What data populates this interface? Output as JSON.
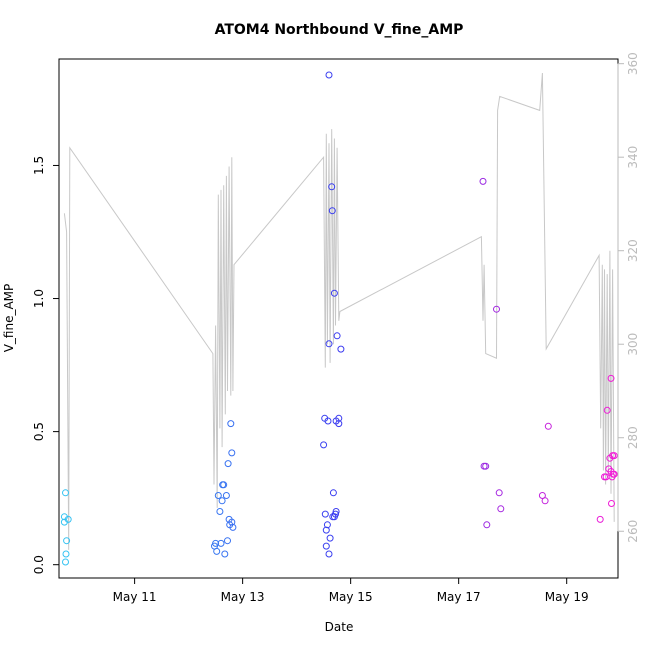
{
  "chart_data": {
    "type": "scatter",
    "title": "ATOM4 Northbound V_fine_AMP",
    "xlabel": "Date",
    "ylabel": "V_fine_AMP",
    "x_unit": "days since May 1",
    "xlim": [
      9.6,
      19.95
    ],
    "ylim": [
      -0.05,
      1.9
    ],
    "x_ticks": [
      {
        "value": 11,
        "label": "May 11"
      },
      {
        "value": 13,
        "label": "May 13"
      },
      {
        "value": 15,
        "label": "May 15"
      },
      {
        "value": 17,
        "label": "May 17"
      },
      {
        "value": 19,
        "label": "May 19"
      }
    ],
    "y_ticks": [
      {
        "value": 0.0,
        "label": "0.0"
      },
      {
        "value": 0.5,
        "label": "0.5"
      },
      {
        "value": 1.0,
        "label": "1.0"
      },
      {
        "value": 1.5,
        "label": "1.5"
      }
    ],
    "y2_lim": [
      250,
      361
    ],
    "y2_ticks": [
      {
        "value": 260,
        "label": "260"
      },
      {
        "value": 280,
        "label": "280"
      },
      {
        "value": 300,
        "label": "300"
      },
      {
        "value": 320,
        "label": "320"
      },
      {
        "value": 340,
        "label": "340"
      },
      {
        "value": 360,
        "label": "360"
      }
    ],
    "colors": {
      "line": "#c8c8c8",
      "frame": "#000000",
      "right_axis": "#bbbbbb",
      "point_ramp": [
        "#36c4f2",
        "#3a3af0",
        "#f21ad6"
      ]
    },
    "points": [
      {
        "x": 9.72,
        "y": 0.27
      },
      {
        "x": 9.7,
        "y": 0.18
      },
      {
        "x": 9.7,
        "y": 0.16
      },
      {
        "x": 9.77,
        "y": 0.17
      },
      {
        "x": 9.74,
        "y": 0.09
      },
      {
        "x": 9.73,
        "y": 0.04
      },
      {
        "x": 9.72,
        "y": 0.01
      },
      {
        "x": 12.48,
        "y": 0.07
      },
      {
        "x": 12.5,
        "y": 0.08
      },
      {
        "x": 12.52,
        "y": 0.05
      },
      {
        "x": 12.55,
        "y": 0.26
      },
      {
        "x": 12.58,
        "y": 0.2
      },
      {
        "x": 12.6,
        "y": 0.08
      },
      {
        "x": 12.62,
        "y": 0.24
      },
      {
        "x": 12.63,
        "y": 0.3
      },
      {
        "x": 12.65,
        "y": 0.3
      },
      {
        "x": 12.67,
        "y": 0.04
      },
      {
        "x": 12.7,
        "y": 0.26
      },
      {
        "x": 12.72,
        "y": 0.09
      },
      {
        "x": 12.73,
        "y": 0.38
      },
      {
        "x": 12.75,
        "y": 0.17
      },
      {
        "x": 12.76,
        "y": 0.15
      },
      {
        "x": 12.78,
        "y": 0.53
      },
      {
        "x": 12.8,
        "y": 0.16
      },
      {
        "x": 12.8,
        "y": 0.42
      },
      {
        "x": 12.82,
        "y": 0.14
      },
      {
        "x": 14.5,
        "y": 0.45
      },
      {
        "x": 14.52,
        "y": 0.55
      },
      {
        "x": 14.53,
        "y": 0.19
      },
      {
        "x": 14.55,
        "y": 0.13
      },
      {
        "x": 14.55,
        "y": 0.07
      },
      {
        "x": 14.57,
        "y": 0.15
      },
      {
        "x": 14.58,
        "y": 0.54
      },
      {
        "x": 14.6,
        "y": 0.83
      },
      {
        "x": 14.6,
        "y": 1.84
      },
      {
        "x": 14.6,
        "y": 0.04
      },
      {
        "x": 14.62,
        "y": 0.1
      },
      {
        "x": 14.65,
        "y": 1.42
      },
      {
        "x": 14.66,
        "y": 1.33
      },
      {
        "x": 14.67,
        "y": 0.18
      },
      {
        "x": 14.68,
        "y": 0.27
      },
      {
        "x": 14.7,
        "y": 1.02
      },
      {
        "x": 14.7,
        "y": 0.18
      },
      {
        "x": 14.72,
        "y": 0.19
      },
      {
        "x": 14.73,
        "y": 0.2
      },
      {
        "x": 14.73,
        "y": 0.54
      },
      {
        "x": 14.75,
        "y": 0.86
      },
      {
        "x": 14.78,
        "y": 0.55
      },
      {
        "x": 14.78,
        "y": 0.53
      },
      {
        "x": 14.82,
        "y": 0.81
      },
      {
        "x": 17.45,
        "y": 1.44
      },
      {
        "x": 17.47,
        "y": 0.37
      },
      {
        "x": 17.5,
        "y": 0.37
      },
      {
        "x": 17.52,
        "y": 0.15
      },
      {
        "x": 17.7,
        "y": 0.96
      },
      {
        "x": 17.75,
        "y": 0.27
      },
      {
        "x": 17.78,
        "y": 0.21
      },
      {
        "x": 18.55,
        "y": 0.26
      },
      {
        "x": 18.6,
        "y": 0.24
      },
      {
        "x": 18.66,
        "y": 0.52
      },
      {
        "x": 19.62,
        "y": 0.17
      },
      {
        "x": 19.7,
        "y": 0.33
      },
      {
        "x": 19.73,
        "y": 0.33
      },
      {
        "x": 19.75,
        "y": 0.58
      },
      {
        "x": 19.78,
        "y": 0.36
      },
      {
        "x": 19.8,
        "y": 0.4
      },
      {
        "x": 19.82,
        "y": 0.7
      },
      {
        "x": 19.82,
        "y": 0.35
      },
      {
        "x": 19.83,
        "y": 0.23
      },
      {
        "x": 19.84,
        "y": 0.33
      },
      {
        "x": 19.85,
        "y": 0.41
      },
      {
        "x": 19.86,
        "y": 0.34
      },
      {
        "x": 19.88,
        "y": 0.41
      },
      {
        "x": 19.88,
        "y": 0.34
      }
    ],
    "line_series": {
      "axis": "right",
      "points": [
        [
          9.7,
          328
        ],
        [
          9.74,
          324
        ],
        [
          9.78,
          256
        ],
        [
          9.8,
          342
        ],
        [
          12.45,
          298
        ],
        [
          12.47,
          270
        ],
        [
          12.5,
          304
        ],
        [
          12.53,
          265
        ],
        [
          12.55,
          332
        ],
        [
          12.58,
          282
        ],
        [
          12.6,
          333
        ],
        [
          12.62,
          278
        ],
        [
          12.65,
          334
        ],
        [
          12.68,
          285
        ],
        [
          12.7,
          336
        ],
        [
          12.72,
          290
        ],
        [
          12.75,
          338
        ],
        [
          12.78,
          289
        ],
        [
          12.8,
          340
        ],
        [
          12.82,
          290
        ],
        [
          12.84,
          317
        ],
        [
          14.5,
          340
        ],
        [
          14.53,
          295
        ],
        [
          14.55,
          345
        ],
        [
          14.57,
          300
        ],
        [
          14.6,
          343
        ],
        [
          14.62,
          296
        ],
        [
          14.65,
          346
        ],
        [
          14.68,
          300
        ],
        [
          14.7,
          344
        ],
        [
          14.72,
          304
        ],
        [
          14.75,
          342
        ],
        [
          14.78,
          305
        ],
        [
          14.8,
          307
        ],
        [
          17.42,
          323
        ],
        [
          17.45,
          305
        ],
        [
          17.47,
          317
        ],
        [
          17.5,
          298
        ],
        [
          17.7,
          297
        ],
        [
          17.72,
          350
        ],
        [
          17.76,
          353
        ],
        [
          18.5,
          350
        ],
        [
          18.55,
          358
        ],
        [
          18.62,
          299
        ],
        [
          19.6,
          319
        ],
        [
          19.63,
          282
        ],
        [
          19.66,
          317
        ],
        [
          19.68,
          273
        ],
        [
          19.7,
          316
        ],
        [
          19.72,
          270
        ],
        [
          19.75,
          315
        ],
        [
          19.77,
          272
        ],
        [
          19.8,
          320
        ],
        [
          19.82,
          268
        ],
        [
          19.85,
          316
        ],
        [
          19.88,
          262
        ]
      ]
    }
  }
}
